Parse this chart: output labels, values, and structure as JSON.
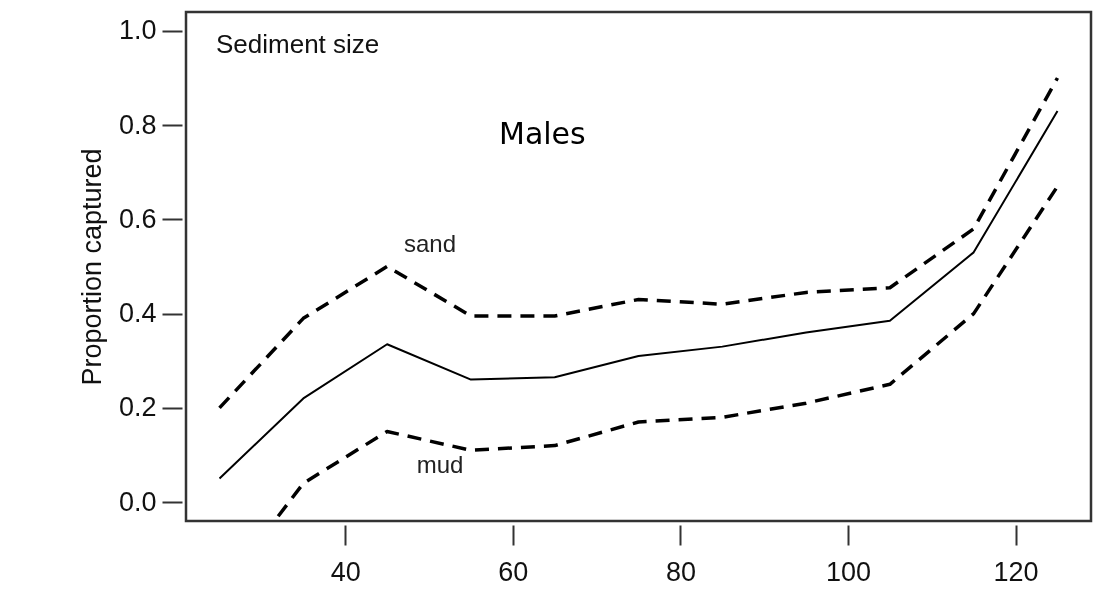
{
  "chart_data": {
    "type": "line",
    "title": "Sediment size",
    "subtitle": "Males",
    "ylabel": "Proportion captured",
    "xlim": [
      21,
      129
    ],
    "xticks": [
      40,
      60,
      80,
      100,
      120
    ],
    "ylim": [
      -0.04,
      1.04
    ],
    "yticks": [
      {
        "value": 0,
        "label": "0.0"
      },
      {
        "value": 0.2,
        "label": "0.2"
      },
      {
        "value": 0.4,
        "label": "0.4"
      },
      {
        "value": 0.6,
        "label": "0.6"
      },
      {
        "value": 0.8,
        "label": "0.8"
      },
      {
        "value": 1,
        "label": "1.0"
      }
    ],
    "grid": false,
    "marker": "none",
    "annotations": [
      "sand",
      "mud"
    ],
    "series": [
      {
        "color": "#000000",
        "line_style": "dashed",
        "x": [
          25,
          35,
          45,
          55,
          65,
          75,
          85,
          95,
          105,
          115,
          125
        ],
        "values": [
          0.2,
          0.39,
          0.5,
          0.395,
          0.395,
          0.43,
          0.42,
          0.445,
          0.455,
          0.58,
          0.9
        ]
      },
      {
        "color": "#000000",
        "line_style": "solid",
        "x": [
          25,
          35,
          45,
          55,
          65,
          75,
          85,
          95,
          105,
          115,
          125
        ],
        "values": [
          0.05,
          0.22,
          0.335,
          0.26,
          0.265,
          0.31,
          0.33,
          0.36,
          0.385,
          0.53,
          0.83
        ]
      },
      {
        "color": "#000000",
        "line_style": "dashed",
        "x": [
          32,
          35,
          45,
          55,
          65,
          75,
          85,
          95,
          105,
          115,
          125
        ],
        "values": [
          -0.03,
          0.04,
          0.15,
          0.11,
          0.12,
          0.17,
          0.18,
          0.21,
          0.25,
          0.4,
          0.67
        ]
      }
    ]
  }
}
